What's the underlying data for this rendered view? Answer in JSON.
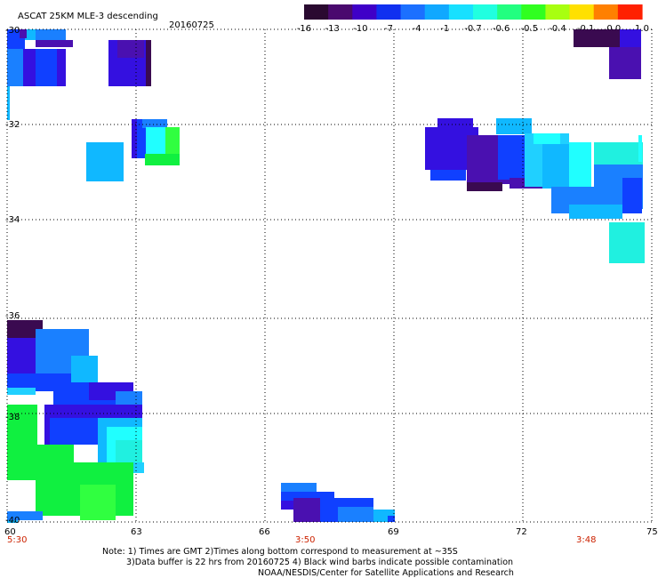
{
  "header": {
    "title": "ASCAT 25KM MLE-3 descending",
    "date": "20160725"
  },
  "colorbar": {
    "labels": [
      "-16",
      "-13",
      "-10",
      "-7",
      "-4",
      "-1",
      "-0.7",
      "-0.6",
      "-0.5",
      "-0.4",
      "-0.1",
      "0.0",
      "1.0"
    ],
    "colors": [
      "#2a0a30",
      "#4a0a6e",
      "#3f00c8",
      "#1030f0",
      "#1c70ff",
      "#10a8ff",
      "#18e0ff",
      "#20ffe0",
      "#22ff80",
      "#30ff20",
      "#a8ff10",
      "#ffe000",
      "#ff8000",
      "#ff2000"
    ]
  },
  "axes": {
    "lat_labels": [
      "-30",
      "-32",
      "-34",
      "-36",
      "-38",
      "-40"
    ],
    "lon_labels": [
      "60",
      "63",
      "66",
      "69",
      "72",
      "75"
    ],
    "times": [
      {
        "text": "5:30"
      },
      {
        "text": "3:50"
      },
      {
        "text": "3:48"
      }
    ]
  },
  "footer": {
    "line1": "Note: 1) Times are GMT 2)Times along bottom correspond to measurement at ~35S",
    "line2": "3)Data buffer is 22 hrs from 20160725 4) Black wind barbs indicate possible contamination",
    "line3": "NOAA/NESDIS/Center for Satellite Applications and Research"
  },
  "legend_colors": {
    "dark_purple": "#3a0a50",
    "purple": "#4a10b0",
    "blue_violet": "#3410e0",
    "blue": "#1040ff",
    "mid_blue": "#1a80ff",
    "sky": "#10b8ff",
    "light_sky": "#20d0ff",
    "cyan": "#20ffff",
    "aqua": "#20f0e0",
    "green": "#10f040",
    "light_green": "#30ff40"
  }
}
